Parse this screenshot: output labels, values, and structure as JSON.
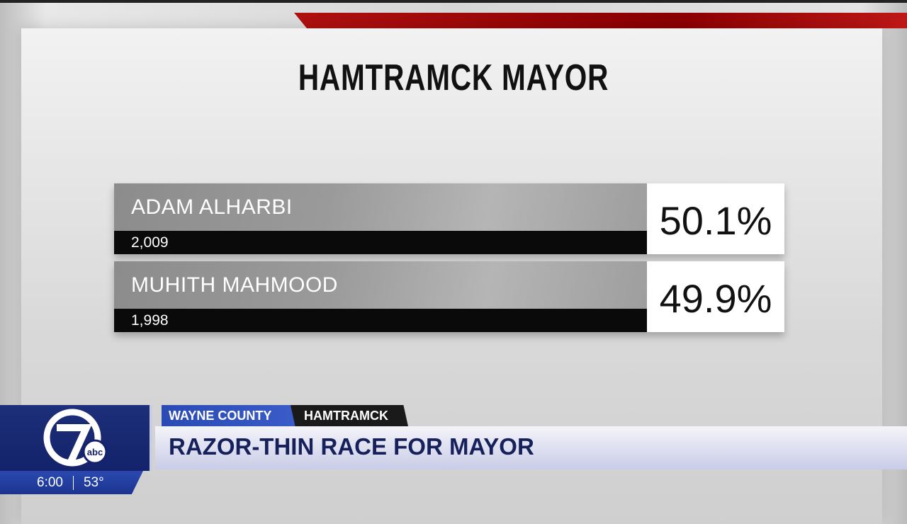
{
  "graphic": {
    "title": "HAMTRAMCK MAYOR",
    "candidates": [
      {
        "name": "ADAM ALHARBI",
        "votes": "2,009",
        "percent": "50.1%"
      },
      {
        "name": "MUHITH MAHMOOD",
        "votes": "1,998",
        "percent": "49.9%"
      }
    ]
  },
  "lower_third": {
    "logo": "7 abc",
    "time": "6:00",
    "temperature": "53°",
    "tags": [
      "WAYNE COUNTY",
      "HAMTRAMCK"
    ],
    "headline": "RAZOR-THIN RACE FOR MAYOR"
  },
  "colors": {
    "accent_red": "#b01010",
    "brand_blue": "#1d2f7a",
    "headline_navy": "#16205a"
  }
}
